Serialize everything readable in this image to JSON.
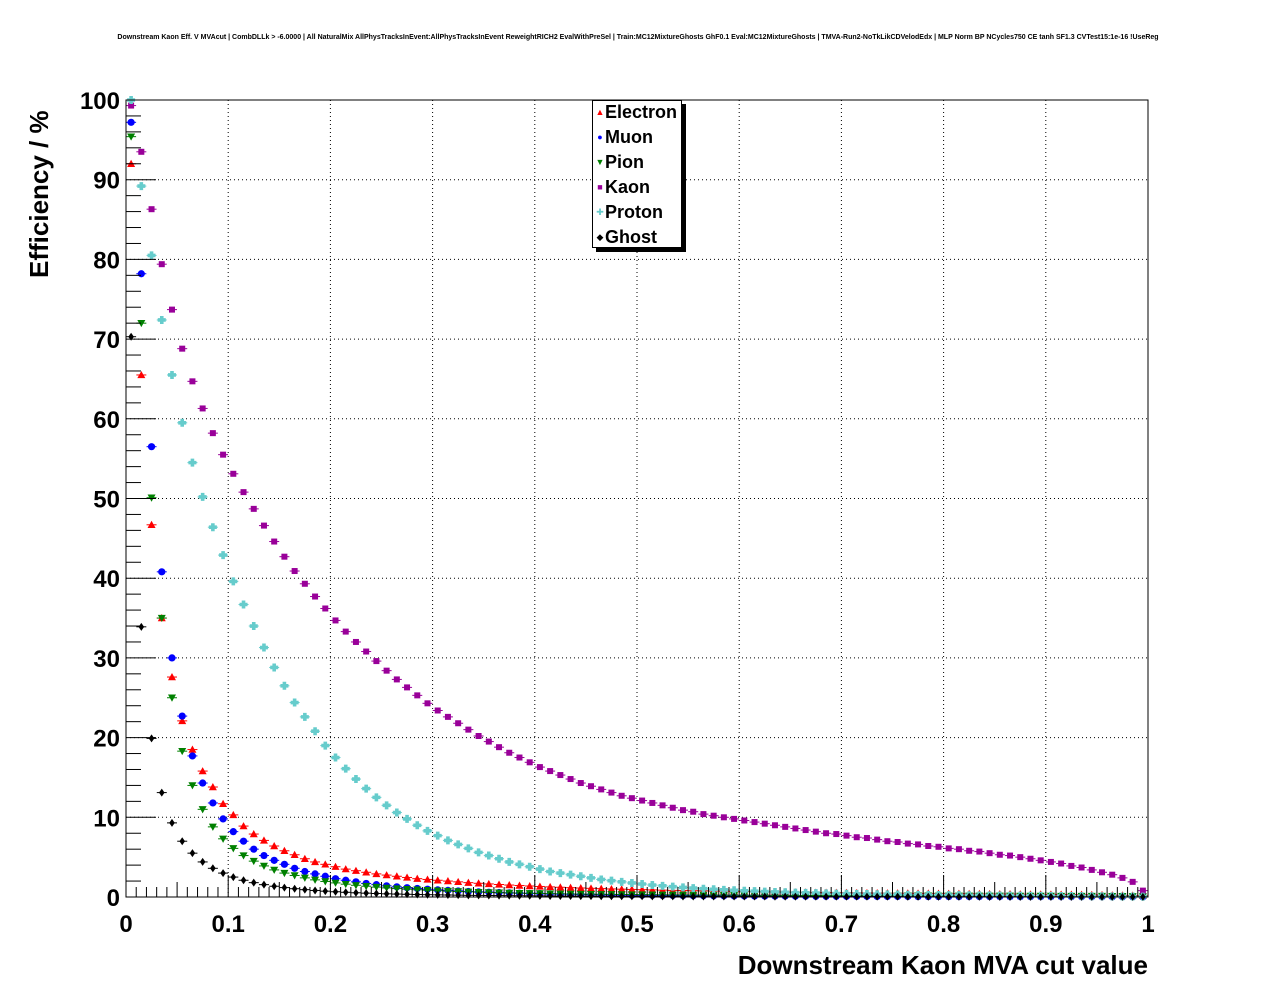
{
  "chart_data": {
    "type": "scatter",
    "title": "Downstream Kaon Eff. V MVAcut | CombDLLk > -6.0000 | All NaturalMix AllPhysTracksInEvent:AllPhysTracksInEvent ReweightRICH2 EvalWithPreSel | Train:MC12MixtureGhosts GhF0.1 Eval:MC12MixtureGhosts | TMVA-Run2-NoTkLikCDVelodEdx | MLP Norm BP NCycles750 CE tanh SF1.3 CVTest15:1e-16 !UseReg",
    "xlabel": "Downstream Kaon MVA cut value",
    "ylabel": "Efficiency / %",
    "xlim": [
      0,
      1
    ],
    "ylim": [
      0,
      100
    ],
    "grid": true,
    "legend_position": "top-center",
    "x_ticks": [
      "0",
      "0.1",
      "0.2",
      "0.3",
      "0.4",
      "0.5",
      "0.6",
      "0.7",
      "0.8",
      "0.9",
      "1"
    ],
    "y_ticks": [
      "0",
      "10",
      "20",
      "30",
      "40",
      "50",
      "60",
      "70",
      "80",
      "90",
      "100"
    ],
    "x": [
      0.005,
      0.015,
      0.025,
      0.035,
      0.045,
      0.055,
      0.065,
      0.075,
      0.085,
      0.095,
      0.105,
      0.115,
      0.125,
      0.135,
      0.145,
      0.155,
      0.165,
      0.175,
      0.185,
      0.195,
      0.205,
      0.215,
      0.225,
      0.235,
      0.245,
      0.255,
      0.265,
      0.275,
      0.285,
      0.295,
      0.305,
      0.315,
      0.325,
      0.335,
      0.345,
      0.355,
      0.365,
      0.375,
      0.385,
      0.395,
      0.405,
      0.415,
      0.425,
      0.435,
      0.445,
      0.455,
      0.465,
      0.475,
      0.485,
      0.495,
      0.505,
      0.515,
      0.525,
      0.535,
      0.545,
      0.555,
      0.565,
      0.575,
      0.585,
      0.595,
      0.605,
      0.615,
      0.625,
      0.635,
      0.645,
      0.655,
      0.665,
      0.675,
      0.685,
      0.695,
      0.705,
      0.715,
      0.725,
      0.735,
      0.745,
      0.755,
      0.765,
      0.775,
      0.785,
      0.795,
      0.805,
      0.815,
      0.825,
      0.835,
      0.845,
      0.855,
      0.865,
      0.875,
      0.885,
      0.895,
      0.905,
      0.915,
      0.925,
      0.935,
      0.945,
      0.955,
      0.965,
      0.975,
      0.985,
      0.995
    ],
    "series": [
      {
        "name": "Electron",
        "color": "#ff0000",
        "marker": "triangle-up",
        "values": [
          92,
          65.5,
          46.7,
          35,
          27.6,
          22.1,
          18.5,
          15.8,
          13.8,
          11.7,
          10.3,
          8.9,
          7.9,
          7.1,
          6.4,
          5.8,
          5.3,
          4.8,
          4.4,
          4.1,
          3.8,
          3.5,
          3.3,
          3.1,
          2.9,
          2.75,
          2.6,
          2.45,
          2.3,
          2.2,
          2.1,
          2.0,
          1.9,
          1.8,
          1.72,
          1.64,
          1.57,
          1.5,
          1.44,
          1.38,
          1.32,
          1.27,
          1.22,
          1.17,
          1.13,
          1.09,
          1.05,
          1.01,
          0.98,
          0.95,
          0.92,
          0.89,
          0.86,
          0.83,
          0.81,
          0.79,
          0.77,
          0.75,
          0.73,
          0.71,
          0.69,
          0.67,
          0.65,
          0.63,
          0.62,
          0.6,
          0.59,
          0.57,
          0.56,
          0.55,
          0.54,
          0.52,
          0.51,
          0.5,
          0.49,
          0.48,
          0.47,
          0.46,
          0.45,
          0.44,
          0.43,
          0.42,
          0.41,
          0.4,
          0.39,
          0.38,
          0.37,
          0.36,
          0.35,
          0.34,
          0.33,
          0.32,
          0.31,
          0.3,
          0.28,
          0.26,
          0.24,
          0.22,
          0.2,
          0.15
        ]
      },
      {
        "name": "Muon",
        "color": "#0000ff",
        "marker": "circle",
        "values": [
          97.2,
          78.2,
          56.5,
          40.8,
          30,
          22.7,
          17.7,
          14.3,
          11.8,
          9.8,
          8.2,
          7.0,
          6.0,
          5.2,
          4.6,
          4.1,
          3.6,
          3.2,
          2.9,
          2.6,
          2.3,
          2.1,
          1.9,
          1.7,
          1.55,
          1.4,
          1.28,
          1.17,
          1.07,
          0.98,
          0.9,
          0.83,
          0.76,
          0.7,
          0.65,
          0.6,
          0.56,
          0.52,
          0.48,
          0.45,
          0.42,
          0.39,
          0.36,
          0.34,
          0.32,
          0.3,
          0.28,
          0.26,
          0.25,
          0.23,
          0.22,
          0.21,
          0.2,
          0.19,
          0.18,
          0.17,
          0.16,
          0.15,
          0.14,
          0.13,
          0.13,
          0.12,
          0.12,
          0.11,
          0.11,
          0.1,
          0.1,
          0.09,
          0.09,
          0.09,
          0.08,
          0.08,
          0.08,
          0.07,
          0.07,
          0.07,
          0.07,
          0.06,
          0.06,
          0.06,
          0.06,
          0.05,
          0.05,
          0.05,
          0.05,
          0.05,
          0.04,
          0.04,
          0.04,
          0.04,
          0.04,
          0.03,
          0.03,
          0.03,
          0.03,
          0.03,
          0.02,
          0.02,
          0.02,
          0.01
        ]
      },
      {
        "name": "Pion",
        "color": "#008000",
        "marker": "triangle-down",
        "values": [
          95.4,
          72,
          50.1,
          35,
          25,
          18.3,
          14,
          11,
          8.8,
          7.3,
          6.1,
          5.2,
          4.5,
          3.9,
          3.4,
          3.0,
          2.7,
          2.4,
          2.15,
          1.95,
          1.77,
          1.61,
          1.47,
          1.35,
          1.24,
          1.14,
          1.06,
          0.98,
          0.91,
          0.85,
          0.79,
          0.74,
          0.69,
          0.65,
          0.61,
          0.57,
          0.54,
          0.51,
          0.48,
          0.46,
          0.44,
          0.42,
          0.4,
          0.38,
          0.36,
          0.35,
          0.34,
          0.33,
          0.32,
          0.31,
          0.3,
          0.29,
          0.28,
          0.27,
          0.26,
          0.25,
          0.25,
          0.24,
          0.23,
          0.23,
          0.22,
          0.22,
          0.21,
          0.21,
          0.2,
          0.2,
          0.19,
          0.19,
          0.19,
          0.18,
          0.18,
          0.18,
          0.17,
          0.17,
          0.17,
          0.16,
          0.16,
          0.16,
          0.16,
          0.15,
          0.15,
          0.15,
          0.15,
          0.14,
          0.14,
          0.14,
          0.14,
          0.13,
          0.13,
          0.13,
          0.13,
          0.12,
          0.12,
          0.12,
          0.11,
          0.11,
          0.1,
          0.1,
          0.09,
          0.07
        ]
      },
      {
        "name": "Kaon",
        "color": "#990099",
        "marker": "square",
        "values": [
          99.3,
          93.5,
          86.3,
          79.4,
          73.7,
          68.8,
          64.7,
          61.3,
          58.2,
          55.5,
          53.1,
          50.8,
          48.7,
          46.6,
          44.6,
          42.7,
          40.9,
          39.3,
          37.7,
          36.2,
          34.7,
          33.3,
          32,
          30.8,
          29.6,
          28.4,
          27.3,
          26.3,
          25.3,
          24.3,
          23.4,
          22.6,
          21.8,
          21,
          20.2,
          19.5,
          18.8,
          18.1,
          17.5,
          16.9,
          16.3,
          15.8,
          15.3,
          14.8,
          14.3,
          13.9,
          13.5,
          13.1,
          12.7,
          12.4,
          12.1,
          11.8,
          11.5,
          11.2,
          10.9,
          10.7,
          10.4,
          10.2,
          10,
          9.8,
          9.6,
          9.4,
          9.2,
          9.0,
          8.8,
          8.6,
          8.4,
          8.2,
          8.0,
          7.9,
          7.7,
          7.5,
          7.4,
          7.2,
          7.0,
          6.9,
          6.7,
          6.6,
          6.4,
          6.3,
          6.1,
          6.0,
          5.8,
          5.7,
          5.5,
          5.3,
          5.2,
          5.0,
          4.8,
          4.6,
          4.4,
          4.2,
          3.9,
          3.7,
          3.4,
          3.1,
          2.8,
          2.4,
          1.9,
          0.8
        ]
      },
      {
        "name": "Proton",
        "color": "#66cccc",
        "marker": "cross",
        "values": [
          100,
          89.2,
          80.5,
          72.4,
          65.5,
          59.5,
          54.5,
          50.2,
          46.4,
          42.9,
          39.6,
          36.7,
          34,
          31.3,
          28.8,
          26.5,
          24.4,
          22.6,
          20.8,
          19.0,
          17.5,
          16.1,
          14.8,
          13.6,
          12.5,
          11.5,
          10.6,
          9.8,
          9.0,
          8.3,
          7.7,
          7.1,
          6.6,
          6.1,
          5.6,
          5.2,
          4.8,
          4.4,
          4.1,
          3.8,
          3.5,
          3.2,
          3.0,
          2.8,
          2.6,
          2.4,
          2.2,
          2.05,
          1.9,
          1.76,
          1.63,
          1.5,
          1.4,
          1.3,
          1.2,
          1.12,
          1.04,
          0.97,
          0.9,
          0.84,
          0.78,
          0.73,
          0.68,
          0.63,
          0.59,
          0.55,
          0.52,
          0.49,
          0.46,
          0.43,
          0.41,
          0.39,
          0.37,
          0.35,
          0.33,
          0.31,
          0.29,
          0.27,
          0.26,
          0.25,
          0.24,
          0.23,
          0.22,
          0.21,
          0.2,
          0.19,
          0.18,
          0.17,
          0.16,
          0.15,
          0.14,
          0.13,
          0.12,
          0.11,
          0.1,
          0.09,
          0.08,
          0.07,
          0.06,
          0.05
        ]
      },
      {
        "name": "Ghost",
        "color": "#000000",
        "marker": "diamond",
        "values": [
          70.3,
          33.9,
          19.9,
          13.1,
          9.3,
          7.0,
          5.5,
          4.4,
          3.6,
          3.0,
          2.5,
          2.1,
          1.8,
          1.55,
          1.35,
          1.18,
          1.04,
          0.92,
          0.82,
          0.73,
          0.66,
          0.59,
          0.53,
          0.48,
          0.44,
          0.4,
          0.37,
          0.34,
          0.31,
          0.29,
          0.27,
          0.25,
          0.23,
          0.21,
          0.2,
          0.19,
          0.18,
          0.17,
          0.16,
          0.15,
          0.14,
          0.13,
          0.12,
          0.12,
          0.11,
          0.11,
          0.1,
          0.1,
          0.09,
          0.09,
          0.09,
          0.08,
          0.08,
          0.08,
          0.07,
          0.07,
          0.07,
          0.07,
          0.06,
          0.06,
          0.06,
          0.06,
          0.06,
          0.05,
          0.05,
          0.05,
          0.05,
          0.05,
          0.05,
          0.04,
          0.04,
          0.04,
          0.04,
          0.04,
          0.04,
          0.04,
          0.03,
          0.03,
          0.03,
          0.03,
          0.03,
          0.03,
          0.03,
          0.03,
          0.02,
          0.02,
          0.02,
          0.02,
          0.02,
          0.02,
          0.02,
          0.02,
          0.02,
          0.02,
          0.01,
          0.01,
          0.01,
          0.01,
          0.01,
          0.01
        ]
      }
    ]
  }
}
